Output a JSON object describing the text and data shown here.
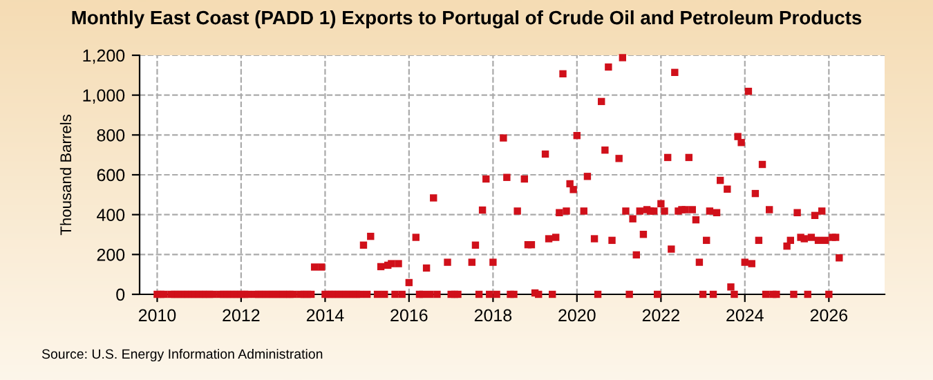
{
  "chart_data": {
    "type": "scatter",
    "title": "Monthly East Coast (PADD 1) Exports to Portugal of Crude Oil and Petroleum Products",
    "ylabel": "Thousand Barrels",
    "annotations": [
      "Source: U.S. Energy Information Administration"
    ],
    "x": [
      "2010-01",
      "2010-02",
      "2010-03",
      "2010-04",
      "2010-05",
      "2010-06",
      "2010-07",
      "2010-08",
      "2010-09",
      "2010-10",
      "2010-11",
      "2010-12",
      "2011-01",
      "2011-02",
      "2011-03",
      "2011-04",
      "2011-05",
      "2011-06",
      "2011-07",
      "2011-08",
      "2011-09",
      "2011-10",
      "2011-11",
      "2011-12",
      "2012-01",
      "2012-02",
      "2012-03",
      "2012-04",
      "2012-05",
      "2012-06",
      "2012-07",
      "2012-08",
      "2012-09",
      "2012-10",
      "2012-11",
      "2012-12",
      "2013-01",
      "2013-02",
      "2013-03",
      "2013-04",
      "2013-05",
      "2013-06",
      "2013-07",
      "2013-08",
      "2013-09",
      "2013-10",
      "2013-11",
      "2013-12",
      "2014-01",
      "2014-02",
      "2014-03",
      "2014-04",
      "2014-05",
      "2014-06",
      "2014-07",
      "2014-08",
      "2014-09",
      "2014-10",
      "2014-11",
      "2014-12",
      "2015-01",
      "2015-02",
      "2015-03",
      "2015-04",
      "2015-05",
      "2015-06",
      "2015-07",
      "2015-08",
      "2015-09",
      "2015-10",
      "2015-11",
      "2015-12",
      "2016-01",
      "2016-02",
      "2016-03",
      "2016-04",
      "2016-05",
      "2016-06",
      "2016-07",
      "2016-08",
      "2016-09",
      "2016-10",
      "2016-11",
      "2016-12",
      "2017-01",
      "2017-02",
      "2017-03",
      "2017-04",
      "2017-05",
      "2017-06",
      "2017-07",
      "2017-08",
      "2017-09",
      "2017-10",
      "2017-11",
      "2017-12",
      "2018-01",
      "2018-02",
      "2018-03",
      "2018-04",
      "2018-05",
      "2018-06",
      "2018-07",
      "2018-08",
      "2018-09",
      "2018-10",
      "2018-11",
      "2018-12",
      "2019-01",
      "2019-02",
      "2019-03",
      "2019-04",
      "2019-05",
      "2019-06",
      "2019-07",
      "2019-08",
      "2019-09",
      "2019-10",
      "2019-11",
      "2019-12",
      "2020-01",
      "2020-02",
      "2020-03",
      "2020-04",
      "2020-05",
      "2020-06",
      "2020-07",
      "2020-08",
      "2020-09",
      "2020-10",
      "2020-11",
      "2020-12",
      "2021-01",
      "2021-02",
      "2021-03",
      "2021-04",
      "2021-05",
      "2021-06",
      "2021-07",
      "2021-08",
      "2021-09",
      "2021-10",
      "2021-11",
      "2021-12",
      "2022-01",
      "2022-02",
      "2022-03",
      "2022-04",
      "2022-05",
      "2022-06",
      "2022-07",
      "2022-08",
      "2022-09",
      "2022-10",
      "2022-11",
      "2022-12",
      "2023-01",
      "2023-02",
      "2023-03",
      "2023-04",
      "2023-05",
      "2023-06",
      "2023-07",
      "2023-08",
      "2023-09",
      "2023-10",
      "2023-11",
      "2023-12",
      "2024-01",
      "2024-02",
      "2024-03",
      "2024-04",
      "2024-05",
      "2024-06",
      "2024-07",
      "2024-08",
      "2024-09",
      "2024-10",
      "2024-11",
      "2024-12",
      "2025-01",
      "2025-02",
      "2025-03",
      "2025-04",
      "2025-05",
      "2025-06",
      "2025-07",
      "2025-08",
      "2025-09",
      "2025-10",
      "2025-11",
      "2025-12",
      "2026-01",
      "2026-02",
      "2026-03",
      "2026-04"
    ],
    "series": [
      {
        "color": "#d0101a",
        "values": [
          0,
          0,
          0,
          null,
          0,
          0,
          0,
          0,
          0,
          0,
          0,
          0,
          0,
          0,
          0,
          0,
          0,
          null,
          0,
          0,
          0,
          0,
          0,
          0,
          0,
          0,
          0,
          null,
          0,
          0,
          0,
          0,
          0,
          0,
          0,
          0,
          0,
          0,
          0,
          0,
          null,
          0,
          0,
          0,
          0,
          137,
          null,
          137,
          0,
          0,
          0,
          0,
          0,
          0,
          0,
          0,
          0,
          0,
          0,
          247,
          0,
          291,
          null,
          0,
          139,
          0,
          146,
          154,
          0,
          154,
          0,
          null,
          59,
          null,
          286,
          0,
          0,
          132,
          0,
          484,
          0,
          null,
          null,
          161,
          0,
          0,
          0,
          null,
          null,
          null,
          161,
          247,
          0,
          423,
          579,
          0,
          161,
          0,
          null,
          785,
          587,
          0,
          0,
          418,
          null,
          579,
          249,
          249,
          7,
          0,
          null,
          704,
          279,
          0,
          286,
          410,
          1107,
          418,
          555,
          526,
          797,
          null,
          418,
          592,
          null,
          279,
          0,
          968,
          724,
          1141,
          271,
          null,
          682,
          1188,
          418,
          0,
          379,
          198,
          418,
          301,
          425,
          418,
          418,
          0,
          455,
          418,
          687,
          227,
          1114,
          418,
          425,
          425,
          687,
          425,
          374,
          161,
          0,
          271,
          418,
          0,
          410,
          572,
          null,
          528,
          37,
          0,
          792,
          762,
          161,
          1019,
          154,
          506,
          271,
          652,
          0,
          425,
          0,
          0,
          null,
          null,
          242,
          271,
          0,
          410,
          286,
          279,
          0,
          286,
          396,
          271,
          418,
          271,
          0,
          286,
          286,
          183
        ]
      }
    ],
    "marker": "square",
    "xlim": [
      "2009-08",
      "2027-05"
    ],
    "xticks": [
      {
        "value": "2010-01",
        "label": "2010"
      },
      {
        "value": "2012-01",
        "label": "2012"
      },
      {
        "value": "2014-01",
        "label": "2014"
      },
      {
        "value": "2016-01",
        "label": "2016"
      },
      {
        "value": "2018-01",
        "label": "2018"
      },
      {
        "value": "2020-01",
        "label": "2020"
      },
      {
        "value": "2022-01",
        "label": "2022"
      },
      {
        "value": "2024-01",
        "label": "2024"
      },
      {
        "value": "2026-01",
        "label": "2026"
      }
    ],
    "ylim": [
      0,
      1200
    ],
    "yticks": [
      0,
      {
        "value": 200,
        "label": "200"
      },
      {
        "value": 400,
        "label": "400"
      },
      {
        "value": 600,
        "label": "600"
      },
      {
        "value": 800,
        "label": "800"
      },
      {
        "value": 1000,
        "label": "1,000"
      },
      {
        "value": 1200,
        "label": "1,200"
      }
    ],
    "grid": true,
    "line_style": "dashed"
  }
}
